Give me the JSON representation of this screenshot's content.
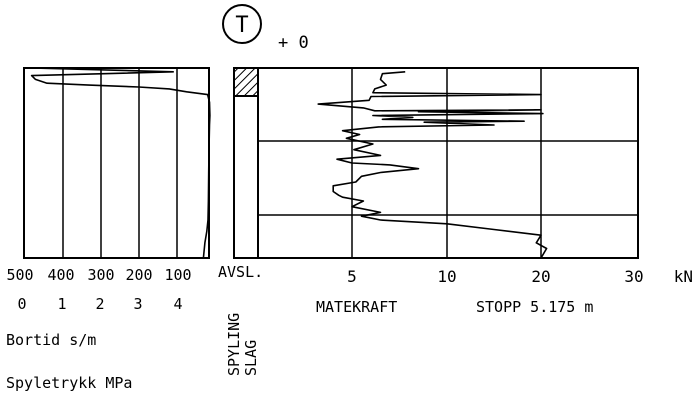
{
  "chart_data": [
    {
      "type": "line",
      "panel": "bortid-spyletrykk",
      "top_axis": {
        "label": "Bortid s/m",
        "ticks": [
          "500",
          "400",
          "300",
          "200",
          "100"
        ],
        "range": [
          500,
          0
        ],
        "reversed": true
      },
      "bottom_axis": {
        "label": "Spyletrykk MPa",
        "ticks": [
          "0",
          "1",
          "2",
          "3",
          "4"
        ],
        "range": [
          0,
          4
        ]
      },
      "series": [
        {
          "unit": "s/m",
          "points": [
            [
              480,
              0.0
            ],
            [
              110,
              0.02
            ],
            [
              480,
              0.04
            ],
            [
              470,
              0.06
            ],
            [
              440,
              0.08
            ],
            [
              330,
              0.09
            ],
            [
              200,
              0.1
            ],
            [
              120,
              0.11
            ],
            [
              75,
              0.125
            ],
            [
              20,
              0.14
            ],
            [
              15,
              0.18
            ],
            [
              14,
              0.25
            ],
            [
              15,
              0.3
            ],
            [
              16,
              0.4
            ],
            [
              17,
              0.55
            ],
            [
              18,
              0.7
            ],
            [
              19,
              0.8
            ],
            [
              22,
              0.86
            ],
            [
              27,
              0.92
            ],
            [
              31,
              1.0
            ]
          ]
        }
      ]
    },
    {
      "type": "line",
      "panel": "matekraft",
      "x_axis": {
        "ticks": [
          "5",
          "10",
          "20",
          "30"
        ],
        "unit": "kN"
      },
      "series": [
        {
          "unit": "kN",
          "points": [
            [
              7.8,
              0.02
            ],
            [
              6.6,
              0.03
            ],
            [
              6.5,
              0.06
            ],
            [
              6.8,
              0.09
            ],
            [
              6.2,
              0.11
            ],
            [
              6.1,
              0.13
            ],
            [
              20.0,
              0.14
            ],
            [
              6.0,
              0.15
            ],
            [
              5.9,
              0.17
            ],
            [
              3.2,
              0.19
            ],
            [
              5.6,
              0.21
            ],
            [
              6.2,
              0.225
            ],
            [
              20.0,
              0.22
            ],
            [
              8.5,
              0.23
            ],
            [
              20.2,
              0.24
            ],
            [
              6.1,
              0.25
            ],
            [
              8.2,
              0.26
            ],
            [
              6.6,
              0.27
            ],
            [
              18.2,
              0.28
            ],
            [
              8.8,
              0.285
            ],
            [
              15.0,
              0.3
            ],
            [
              6.4,
              0.31
            ],
            [
              4.5,
              0.33
            ],
            [
              5.4,
              0.35
            ],
            [
              4.7,
              0.37
            ],
            [
              6.1,
              0.4
            ],
            [
              5.1,
              0.43
            ],
            [
              6.5,
              0.46
            ],
            [
              4.2,
              0.48
            ],
            [
              5.0,
              0.5
            ],
            [
              7.0,
              0.51
            ],
            [
              8.5,
              0.53
            ],
            [
              6.5,
              0.55
            ],
            [
              5.5,
              0.57
            ],
            [
              5.2,
              0.6
            ],
            [
              4.0,
              0.62
            ],
            [
              4.0,
              0.65
            ],
            [
              4.3,
              0.67
            ],
            [
              4.5,
              0.68
            ],
            [
              5.6,
              0.7
            ],
            [
              5.0,
              0.73
            ],
            [
              6.5,
              0.76
            ],
            [
              5.5,
              0.78
            ],
            [
              6.5,
              0.8
            ],
            [
              10.0,
              0.82
            ],
            [
              15.0,
              0.85
            ],
            [
              20.0,
              0.88
            ],
            [
              19.5,
              0.92
            ],
            [
              20.6,
              0.95
            ],
            [
              20.0,
              1.0
            ]
          ]
        }
      ]
    }
  ],
  "header": {
    "symbol_letter": "T",
    "offset": "+ 0"
  },
  "columns": {
    "avsl_label": "AVSL.",
    "spyling_label": "SPYLING",
    "slag_label": "SLAG"
  },
  "bottom_text": {
    "matekraft_label": "MATEKRAFT",
    "stopp_label": "STOPP 5.175 m"
  }
}
